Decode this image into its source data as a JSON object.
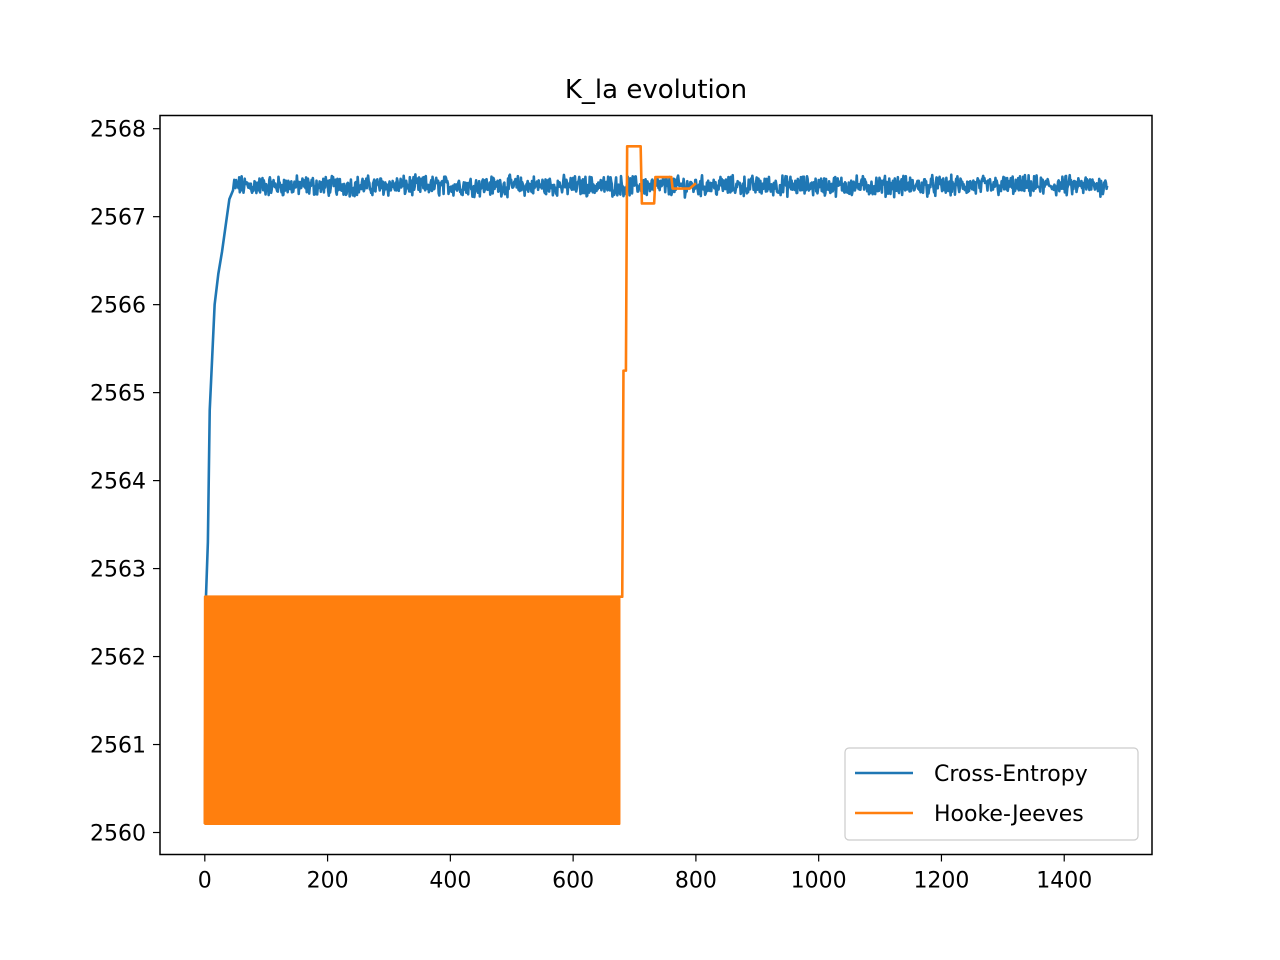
{
  "chart_data": {
    "type": "line",
    "title": "K_la evolution",
    "xlabel": "",
    "ylabel": "",
    "xlim": [
      -73,
      1543
    ],
    "ylim": [
      2559.75,
      2568.15
    ],
    "xticks": [
      0,
      200,
      400,
      600,
      800,
      1000,
      1200,
      1400
    ],
    "yticks": [
      2560,
      2561,
      2562,
      2563,
      2564,
      2565,
      2566,
      2567,
      2568
    ],
    "grid": false,
    "legend_position": "lower right",
    "series": [
      {
        "name": "Cross-Entropy",
        "color": "#1f77b4",
        "kind": "noisy_convergence",
        "x_start": 0,
        "x_end": 1470,
        "initial_value": 2560.1,
        "plateau_value": 2567.35,
        "noise_amplitude": 0.09,
        "anchor_points": [
          [
            0,
            2560.1
          ],
          [
            2,
            2562.7
          ],
          [
            5,
            2563.3
          ],
          [
            8,
            2564.8
          ],
          [
            12,
            2565.4
          ],
          [
            16,
            2566.0
          ],
          [
            22,
            2566.35
          ],
          [
            28,
            2566.6
          ],
          [
            34,
            2566.9
          ],
          [
            40,
            2567.2
          ],
          [
            46,
            2567.3
          ]
        ]
      },
      {
        "name": "Hooke-Jeeves",
        "color": "#ff7f0e",
        "kind": "oscillation_then_steps",
        "oscillation": {
          "x_start": 0,
          "x_end": 675,
          "low": 2560.1,
          "high": 2562.68
        },
        "steps": [
          [
            675,
            2562.68
          ],
          [
            680,
            2562.68
          ],
          [
            682,
            2565.25
          ],
          [
            686,
            2565.25
          ],
          [
            688,
            2567.8
          ],
          [
            710,
            2567.8
          ],
          [
            712,
            2567.15
          ],
          [
            732,
            2567.15
          ],
          [
            734,
            2567.45
          ],
          [
            760,
            2567.45
          ],
          [
            762,
            2567.32
          ],
          [
            790,
            2567.32
          ],
          [
            800,
            2567.38
          ]
        ]
      }
    ]
  }
}
